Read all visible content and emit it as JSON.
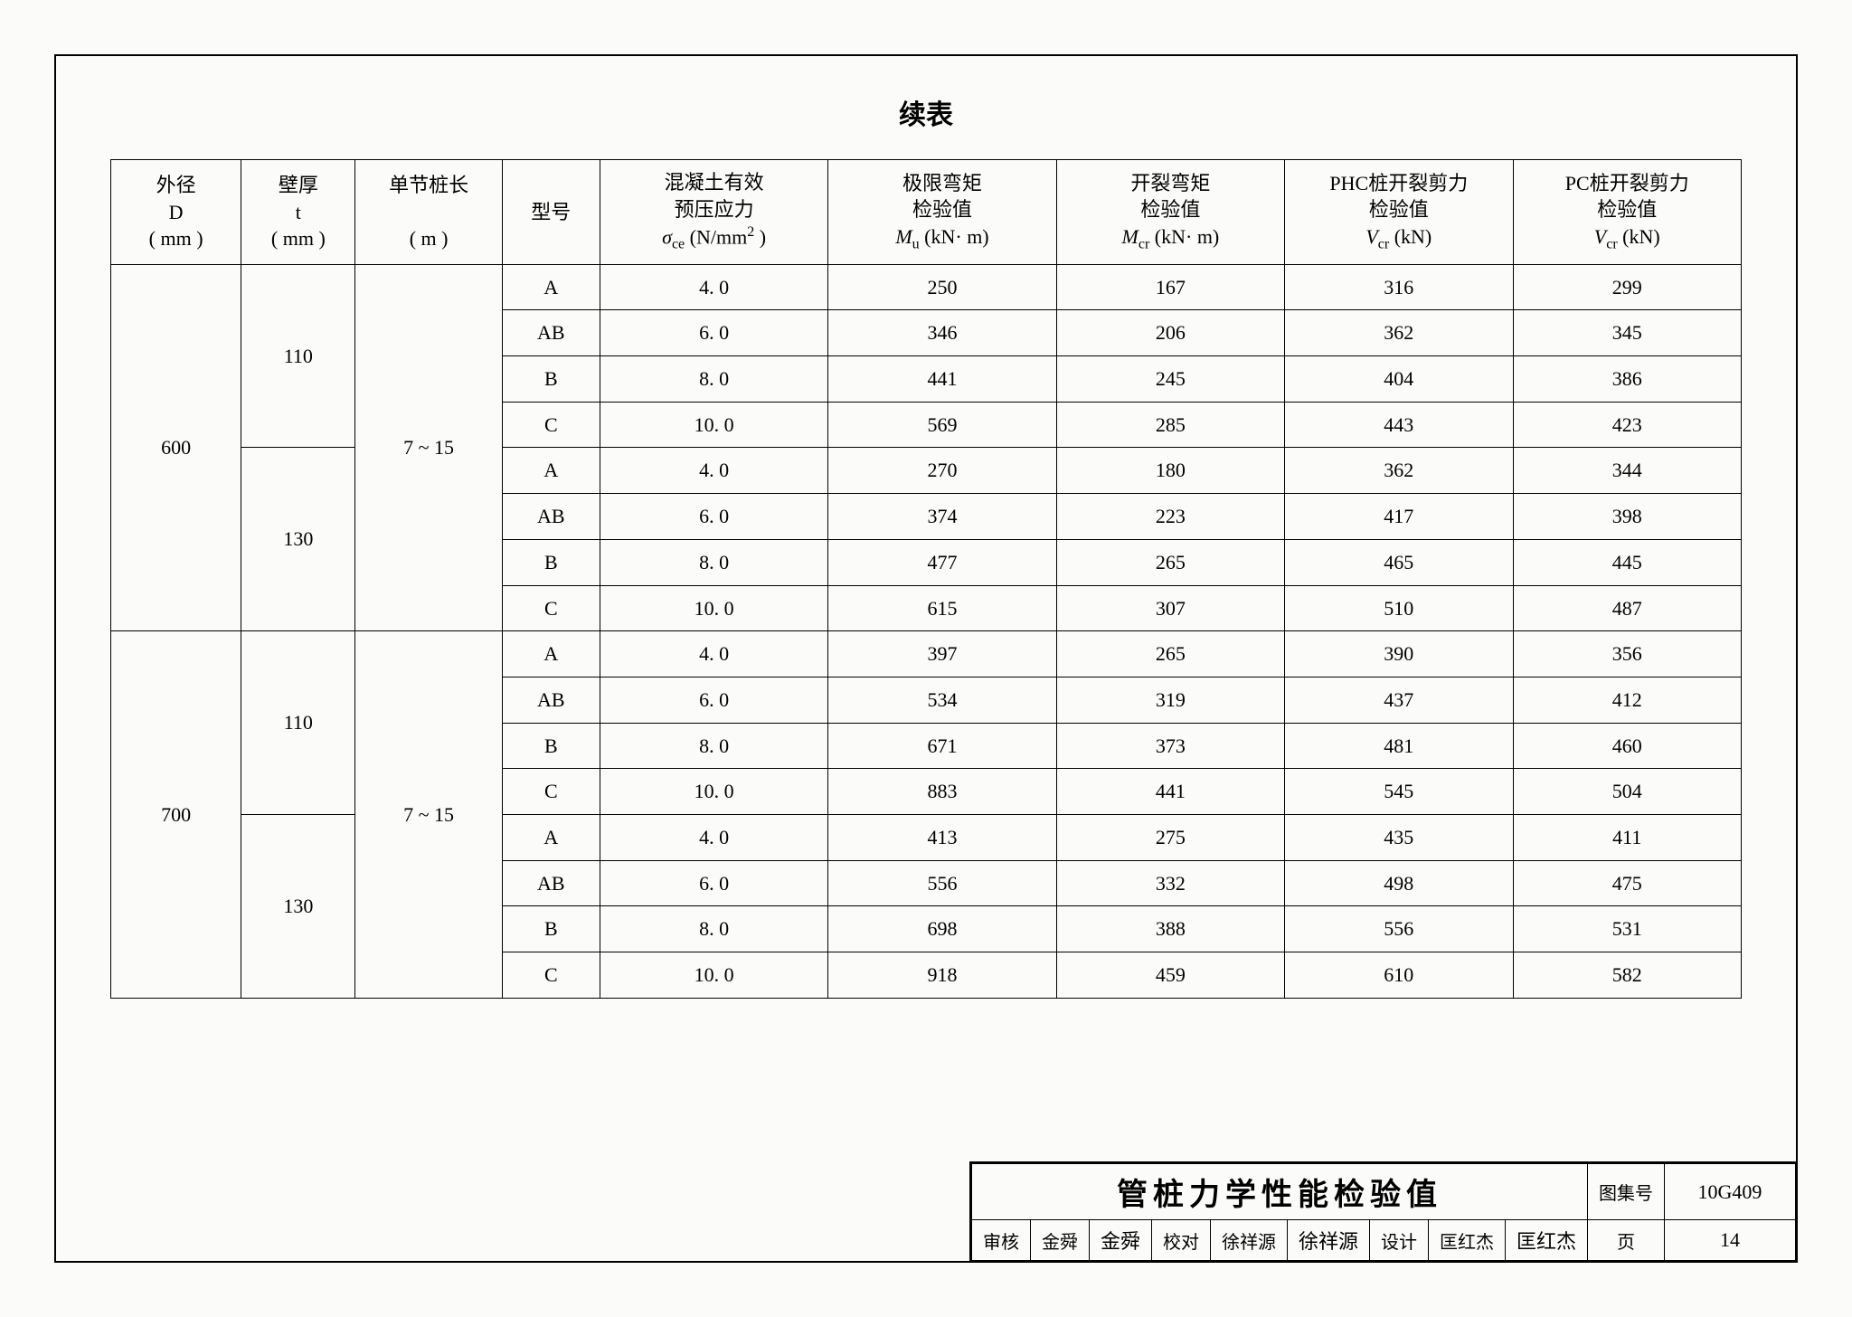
{
  "title": "续表",
  "headers": {
    "d": "外径\nD\n(mm)",
    "t": "壁厚\nt\n(mm)",
    "len": "单节桩长\n\n(m)",
    "type": "型号",
    "sigma_l1": "混凝土有效",
    "sigma_l2": "预压应力",
    "sigma_l3a": "σ",
    "sigma_l3sub": "ce",
    "sigma_l3b": " (N/mm",
    "sigma_l3sup": "2",
    "sigma_l3c": " )",
    "mu_l1": "极限弯矩",
    "mu_l2": "检验值",
    "mu_l3a": "M",
    "mu_l3sub": "u",
    "mu_l3b": " (kN· m)",
    "mcr_l1": "开裂弯矩",
    "mcr_l2": "检验值",
    "mcr_l3a": "M",
    "mcr_l3sub": "cr",
    "mcr_l3b": " (kN· m)",
    "vcr1_l1": "PHC桩开裂剪力",
    "vcr1_l2": "检验值",
    "vcr1_l3a": "V",
    "vcr1_l3sub": "cr",
    "vcr1_l3b": " (kN)",
    "vcr2_l1": "PC桩开裂剪力",
    "vcr2_l2": "检验值",
    "vcr2_l3a": "V",
    "vcr2_l3sub": "cr",
    "vcr2_l3b": " (kN)"
  },
  "groups": [
    {
      "d": "600",
      "len": "7 ~ 15",
      "subgroups": [
        {
          "t": "110",
          "rows": [
            {
              "type": "A",
              "sigma": "4. 0",
              "mu": "250",
              "mcr": "167",
              "vcr1": "316",
              "vcr2": "299"
            },
            {
              "type": "AB",
              "sigma": "6. 0",
              "mu": "346",
              "mcr": "206",
              "vcr1": "362",
              "vcr2": "345"
            },
            {
              "type": "B",
              "sigma": "8. 0",
              "mu": "441",
              "mcr": "245",
              "vcr1": "404",
              "vcr2": "386"
            },
            {
              "type": "C",
              "sigma": "10. 0",
              "mu": "569",
              "mcr": "285",
              "vcr1": "443",
              "vcr2": "423"
            }
          ]
        },
        {
          "t": "130",
          "rows": [
            {
              "type": "A",
              "sigma": "4. 0",
              "mu": "270",
              "mcr": "180",
              "vcr1": "362",
              "vcr2": "344"
            },
            {
              "type": "AB",
              "sigma": "6. 0",
              "mu": "374",
              "mcr": "223",
              "vcr1": "417",
              "vcr2": "398"
            },
            {
              "type": "B",
              "sigma": "8. 0",
              "mu": "477",
              "mcr": "265",
              "vcr1": "465",
              "vcr2": "445"
            },
            {
              "type": "C",
              "sigma": "10. 0",
              "mu": "615",
              "mcr": "307",
              "vcr1": "510",
              "vcr2": "487"
            }
          ]
        }
      ]
    },
    {
      "d": "700",
      "len": "7 ~ 15",
      "subgroups": [
        {
          "t": "110",
          "rows": [
            {
              "type": "A",
              "sigma": "4. 0",
              "mu": "397",
              "mcr": "265",
              "vcr1": "390",
              "vcr2": "356"
            },
            {
              "type": "AB",
              "sigma": "6. 0",
              "mu": "534",
              "mcr": "319",
              "vcr1": "437",
              "vcr2": "412"
            },
            {
              "type": "B",
              "sigma": "8. 0",
              "mu": "671",
              "mcr": "373",
              "vcr1": "481",
              "vcr2": "460"
            },
            {
              "type": "C",
              "sigma": "10. 0",
              "mu": "883",
              "mcr": "441",
              "vcr1": "545",
              "vcr2": "504"
            }
          ]
        },
        {
          "t": "130",
          "rows": [
            {
              "type": "A",
              "sigma": "4. 0",
              "mu": "413",
              "mcr": "275",
              "vcr1": "435",
              "vcr2": "411"
            },
            {
              "type": "AB",
              "sigma": "6. 0",
              "mu": "556",
              "mcr": "332",
              "vcr1": "498",
              "vcr2": "475"
            },
            {
              "type": "B",
              "sigma": "8. 0",
              "mu": "698",
              "mcr": "388",
              "vcr1": "556",
              "vcr2": "531"
            },
            {
              "type": "C",
              "sigma": "10. 0",
              "mu": "918",
              "mcr": "459",
              "vcr1": "610",
              "vcr2": "582"
            }
          ]
        }
      ]
    }
  ],
  "titleblock": {
    "main": "管桩力学性能检验值",
    "atlas_label": "图集号",
    "atlas_value": "10G409",
    "review_label": "审核",
    "review_name": "金舜",
    "review_sign": "金舜",
    "check_label": "校对",
    "check_name": "徐祥源",
    "check_sign": "徐祥源",
    "design_label": "设计",
    "design_name": "匡红杰",
    "design_sign": "匡红杰",
    "page_label": "页",
    "page_value": "14"
  },
  "style": {
    "page_bg": "#fbfbfa",
    "border_color": "#000000",
    "font_family": "SimSun",
    "title_fontsize": 30,
    "cell_fontsize": 22,
    "titleblock_big_fontsize": 34
  }
}
